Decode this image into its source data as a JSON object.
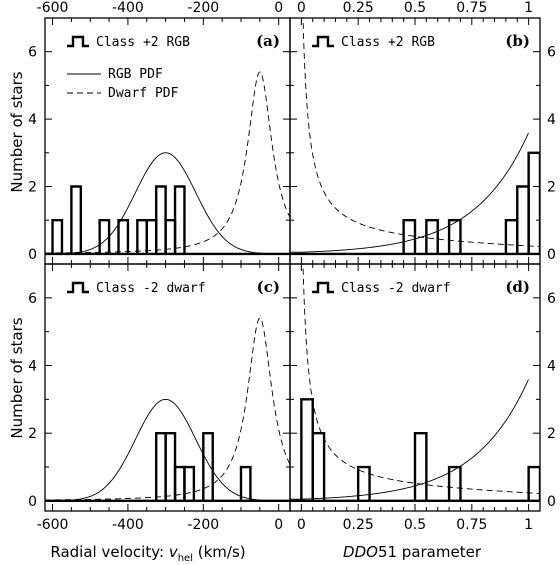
{
  "figure": {
    "ylabel_top": "Number of stars",
    "ylabel_bottom": "Number of stars",
    "xlabel_left_prefix": "Radial velocity: ",
    "xlabel_left_var": "v",
    "xlabel_left_sub": "hel",
    "xlabel_left_unit": " (km/s)",
    "xlabel_right_var": "DDO",
    "xlabel_right_rest": "51 parameter"
  },
  "legend": {
    "rgb_pdf": "RGB PDF",
    "dwarf_pdf": "Dwarf PDF"
  },
  "chart_data": [
    {
      "panel": "(a)",
      "type": "line",
      "legend_title": "Class +2 RGB",
      "xlim": [
        -620,
        30
      ],
      "ylim": [
        -0.3,
        7
      ],
      "xticks": [
        -600,
        -400,
        -200,
        0
      ],
      "yticks": [
        0,
        2,
        4,
        6
      ],
      "histogram": {
        "bin_width": 25,
        "x": [
          -587.5,
          -562.5,
          -537.5,
          -512.5,
          -487.5,
          -462.5,
          -437.5,
          -412.5,
          -387.5,
          -362.5,
          -337.5,
          -312.5,
          -287.5,
          -262.5,
          -237.5,
          -212.5,
          -187.5,
          -162.5,
          -137.5,
          -112.5,
          -87.5,
          -62.5,
          -37.5,
          -12.5
        ],
        "counts": [
          1,
          0,
          2,
          0,
          0,
          1,
          0,
          1,
          0,
          1,
          1,
          2,
          1,
          2,
          0,
          0,
          0,
          0,
          0,
          0,
          0,
          0,
          0,
          0
        ]
      },
      "rgb_pdf": {
        "shape": "gaussian",
        "mean": -300,
        "sigma": 80,
        "peak": 3.0
      },
      "dwarf_pdf": {
        "shape": "lorentzian",
        "center": -50,
        "hwhm": 40,
        "peak": 5.4
      }
    },
    {
      "panel": "(b)",
      "type": "line",
      "legend_title": "Class +2 RGB",
      "xlim": [
        -0.05,
        1.05
      ],
      "ylim": [
        -0.3,
        7
      ],
      "xticks": [
        0,
        0.25,
        0.5,
        0.75,
        1
      ],
      "xtick_labels": [
        "0",
        "0.25",
        "0.5",
        "0.75",
        "1"
      ],
      "yticks": [
        0,
        2,
        4,
        6
      ],
      "histogram": {
        "bin_width": 0.05,
        "x": [
          0.025,
          0.075,
          0.125,
          0.175,
          0.225,
          0.275,
          0.325,
          0.375,
          0.425,
          0.475,
          0.525,
          0.575,
          0.625,
          0.675,
          0.725,
          0.775,
          0.825,
          0.875,
          0.925,
          0.975,
          1.025
        ],
        "counts": [
          0,
          0,
          0,
          0,
          0,
          0,
          0,
          0,
          0,
          1,
          0,
          1,
          0,
          1,
          0,
          0,
          0,
          0,
          1,
          2,
          3
        ]
      },
      "rgb_pdf": {
        "shape": "exponential",
        "y0": 0.05,
        "scale": 0.24,
        "value_at_1": 3.6
      },
      "dwarf_pdf": {
        "shape": "decaying",
        "base": 0.2,
        "spike_at_0": 7.0
      }
    },
    {
      "panel": "(c)",
      "type": "line",
      "legend_title": "Class -2 dwarf",
      "xlim": [
        -620,
        30
      ],
      "ylim": [
        -0.3,
        7
      ],
      "xticks": [
        -600,
        -400,
        -200,
        0
      ],
      "yticks": [
        0,
        2,
        4,
        6
      ],
      "histogram": {
        "bin_width": 25,
        "x": [
          -312.5,
          -287.5,
          -262.5,
          -237.5,
          -212.5,
          -187.5,
          -162.5,
          -137.5,
          -112.5,
          -87.5,
          -62.5,
          -37.5,
          -12.5
        ],
        "counts": [
          2,
          2,
          1,
          1,
          0,
          2,
          0,
          0,
          0,
          1,
          0,
          0,
          0
        ]
      },
      "rgb_pdf": {
        "shape": "gaussian",
        "mean": -300,
        "sigma": 80,
        "peak": 3.0
      },
      "dwarf_pdf": {
        "shape": "lorentzian",
        "center": -50,
        "hwhm": 40,
        "peak": 5.4
      }
    },
    {
      "panel": "(d)",
      "type": "line",
      "legend_title": "Class -2 dwarf",
      "xlim": [
        -0.05,
        1.05
      ],
      "ylim": [
        -0.3,
        7
      ],
      "xticks": [
        0,
        0.25,
        0.5,
        0.75,
        1
      ],
      "xtick_labels": [
        "0",
        "0.25",
        "0.5",
        "0.75",
        "1"
      ],
      "yticks": [
        0,
        2,
        4,
        6
      ],
      "histogram": {
        "bin_width": 0.05,
        "x": [
          0.025,
          0.075,
          0.125,
          0.175,
          0.225,
          0.275,
          0.325,
          0.375,
          0.425,
          0.475,
          0.525,
          0.575,
          0.625,
          0.675,
          0.725,
          0.775,
          0.825,
          0.875,
          0.925,
          0.975,
          1.025
        ],
        "counts": [
          3,
          2,
          0,
          0,
          0,
          1,
          0,
          0,
          0,
          0,
          2,
          0,
          0,
          1,
          0,
          0,
          0,
          0,
          0,
          0,
          1
        ]
      },
      "rgb_pdf": {
        "shape": "exponential",
        "y0": 0.05,
        "scale": 0.24,
        "value_at_1": 3.6
      },
      "dwarf_pdf": {
        "shape": "decaying",
        "base": 0.2,
        "spike_at_0": 7.0
      }
    }
  ]
}
